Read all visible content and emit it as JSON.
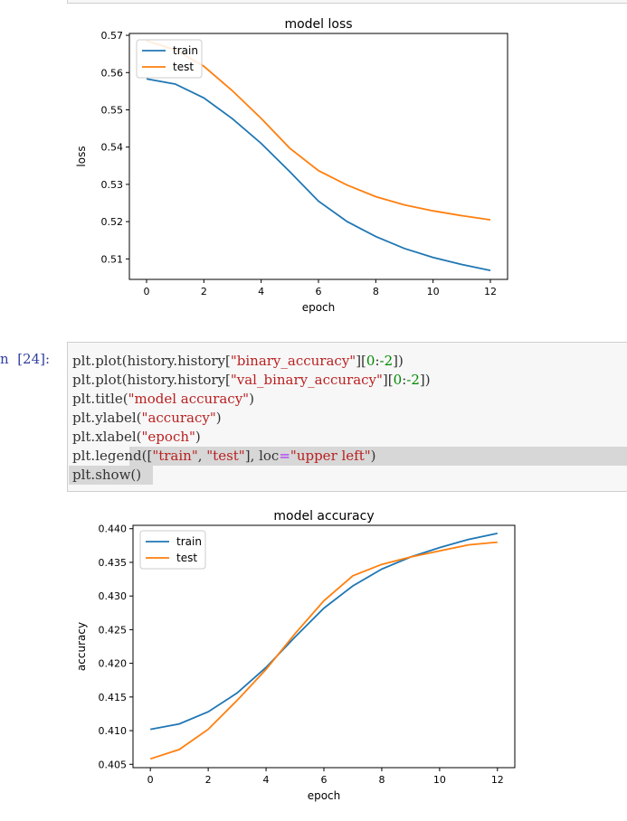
{
  "notebook": {
    "prompt_label": "n  [24]:",
    "code_lines": [
      [
        {
          "t": "plt.plot(history.history[",
          "c": ""
        },
        {
          "t": "\"binary_accuracy\"",
          "c": "s"
        },
        {
          "t": "][",
          "c": ""
        },
        {
          "t": "0",
          "c": "n"
        },
        {
          "t": ":",
          "c": ""
        },
        {
          "t": "-2",
          "c": "n"
        },
        {
          "t": "])",
          "c": ""
        }
      ],
      [
        {
          "t": "plt.plot(history.history[",
          "c": ""
        },
        {
          "t": "\"val_binary_accuracy\"",
          "c": "s"
        },
        {
          "t": "][",
          "c": ""
        },
        {
          "t": "0",
          "c": "n"
        },
        {
          "t": ":",
          "c": ""
        },
        {
          "t": "-2",
          "c": "n"
        },
        {
          "t": "])",
          "c": ""
        }
      ],
      [
        {
          "t": "plt.title(",
          "c": ""
        },
        {
          "t": "\"model accuracy\"",
          "c": "s"
        },
        {
          "t": ")",
          "c": ""
        }
      ],
      [
        {
          "t": "plt.ylabel(",
          "c": ""
        },
        {
          "t": "\"accuracy\"",
          "c": "s"
        },
        {
          "t": ")",
          "c": ""
        }
      ],
      [
        {
          "t": "plt.xlabel(",
          "c": ""
        },
        {
          "t": "\"epoch\"",
          "c": "s"
        },
        {
          "t": ")",
          "c": ""
        }
      ],
      [
        {
          "t": "plt.legend([",
          "c": ""
        },
        {
          "t": "\"train\"",
          "c": "s"
        },
        {
          "t": ", ",
          "c": ""
        },
        {
          "t": "\"test\"",
          "c": "s"
        },
        {
          "t": "], loc",
          "c": ""
        },
        {
          "t": "=",
          "c": "o"
        },
        {
          "t": "\"upper left\"",
          "c": "s"
        },
        {
          "t": ")",
          "c": ""
        }
      ],
      [
        {
          "t": "plt.show()",
          "c": ""
        }
      ]
    ]
  },
  "colors": {
    "train": "#1f77b4",
    "test": "#ff7f0e"
  },
  "chart_data": [
    {
      "type": "line",
      "title": "model loss",
      "xlabel": "epoch",
      "ylabel": "loss",
      "xlim": [
        -0.6,
        12.6
      ],
      "ylim": [
        0.5045,
        0.5705
      ],
      "xticks": [
        0,
        2,
        4,
        6,
        8,
        10,
        12
      ],
      "xtick_labels": [
        "0",
        "2",
        "4",
        "6",
        "8",
        "10",
        "12"
      ],
      "yticks": [
        0.51,
        0.52,
        0.53,
        0.54,
        0.55,
        0.56,
        0.57
      ],
      "ytick_labels": [
        "0.51",
        "0.52",
        "0.53",
        "0.54",
        "0.55",
        "0.56",
        "0.57"
      ],
      "legend_position": "upper left",
      "x": [
        0,
        1,
        2,
        3,
        4,
        5,
        6,
        7,
        8,
        9,
        10,
        11,
        12
      ],
      "series": [
        {
          "name": "train",
          "values": [
            0.5583,
            0.5569,
            0.5532,
            0.5476,
            0.541,
            0.5334,
            0.5255,
            0.52,
            0.516,
            0.5128,
            0.5104,
            0.5085,
            0.5069
          ]
        },
        {
          "name": "test",
          "values": [
            0.5685,
            0.5661,
            0.5617,
            0.5551,
            0.5477,
            0.5397,
            0.5337,
            0.5298,
            0.5267,
            0.5245,
            0.5229,
            0.5216,
            0.5205
          ]
        }
      ]
    },
    {
      "type": "line",
      "title": "model accuracy",
      "xlabel": "epoch",
      "ylabel": "accuracy",
      "xlim": [
        -0.6,
        12.6
      ],
      "ylim": [
        0.4045,
        0.4405
      ],
      "xticks": [
        0,
        2,
        4,
        6,
        8,
        10,
        12
      ],
      "xtick_labels": [
        "0",
        "2",
        "4",
        "6",
        "8",
        "10",
        "12"
      ],
      "yticks": [
        0.405,
        0.41,
        0.415,
        0.42,
        0.425,
        0.43,
        0.435,
        0.44
      ],
      "ytick_labels": [
        "0.405",
        "0.410",
        "0.415",
        "0.420",
        "0.425",
        "0.430",
        "0.435",
        "0.440"
      ],
      "legend_position": "upper left",
      "x": [
        0,
        1,
        2,
        3,
        4,
        5,
        6,
        7,
        8,
        9,
        10,
        11,
        12
      ],
      "series": [
        {
          "name": "train",
          "values": [
            0.4102,
            0.411,
            0.4128,
            0.4156,
            0.4194,
            0.4239,
            0.4282,
            0.4315,
            0.434,
            0.4358,
            0.4372,
            0.4384,
            0.4393
          ]
        },
        {
          "name": "test",
          "values": [
            0.4058,
            0.4072,
            0.4102,
            0.4145,
            0.4191,
            0.4244,
            0.4293,
            0.433,
            0.4347,
            0.4358,
            0.4367,
            0.4376,
            0.438
          ]
        }
      ]
    }
  ]
}
